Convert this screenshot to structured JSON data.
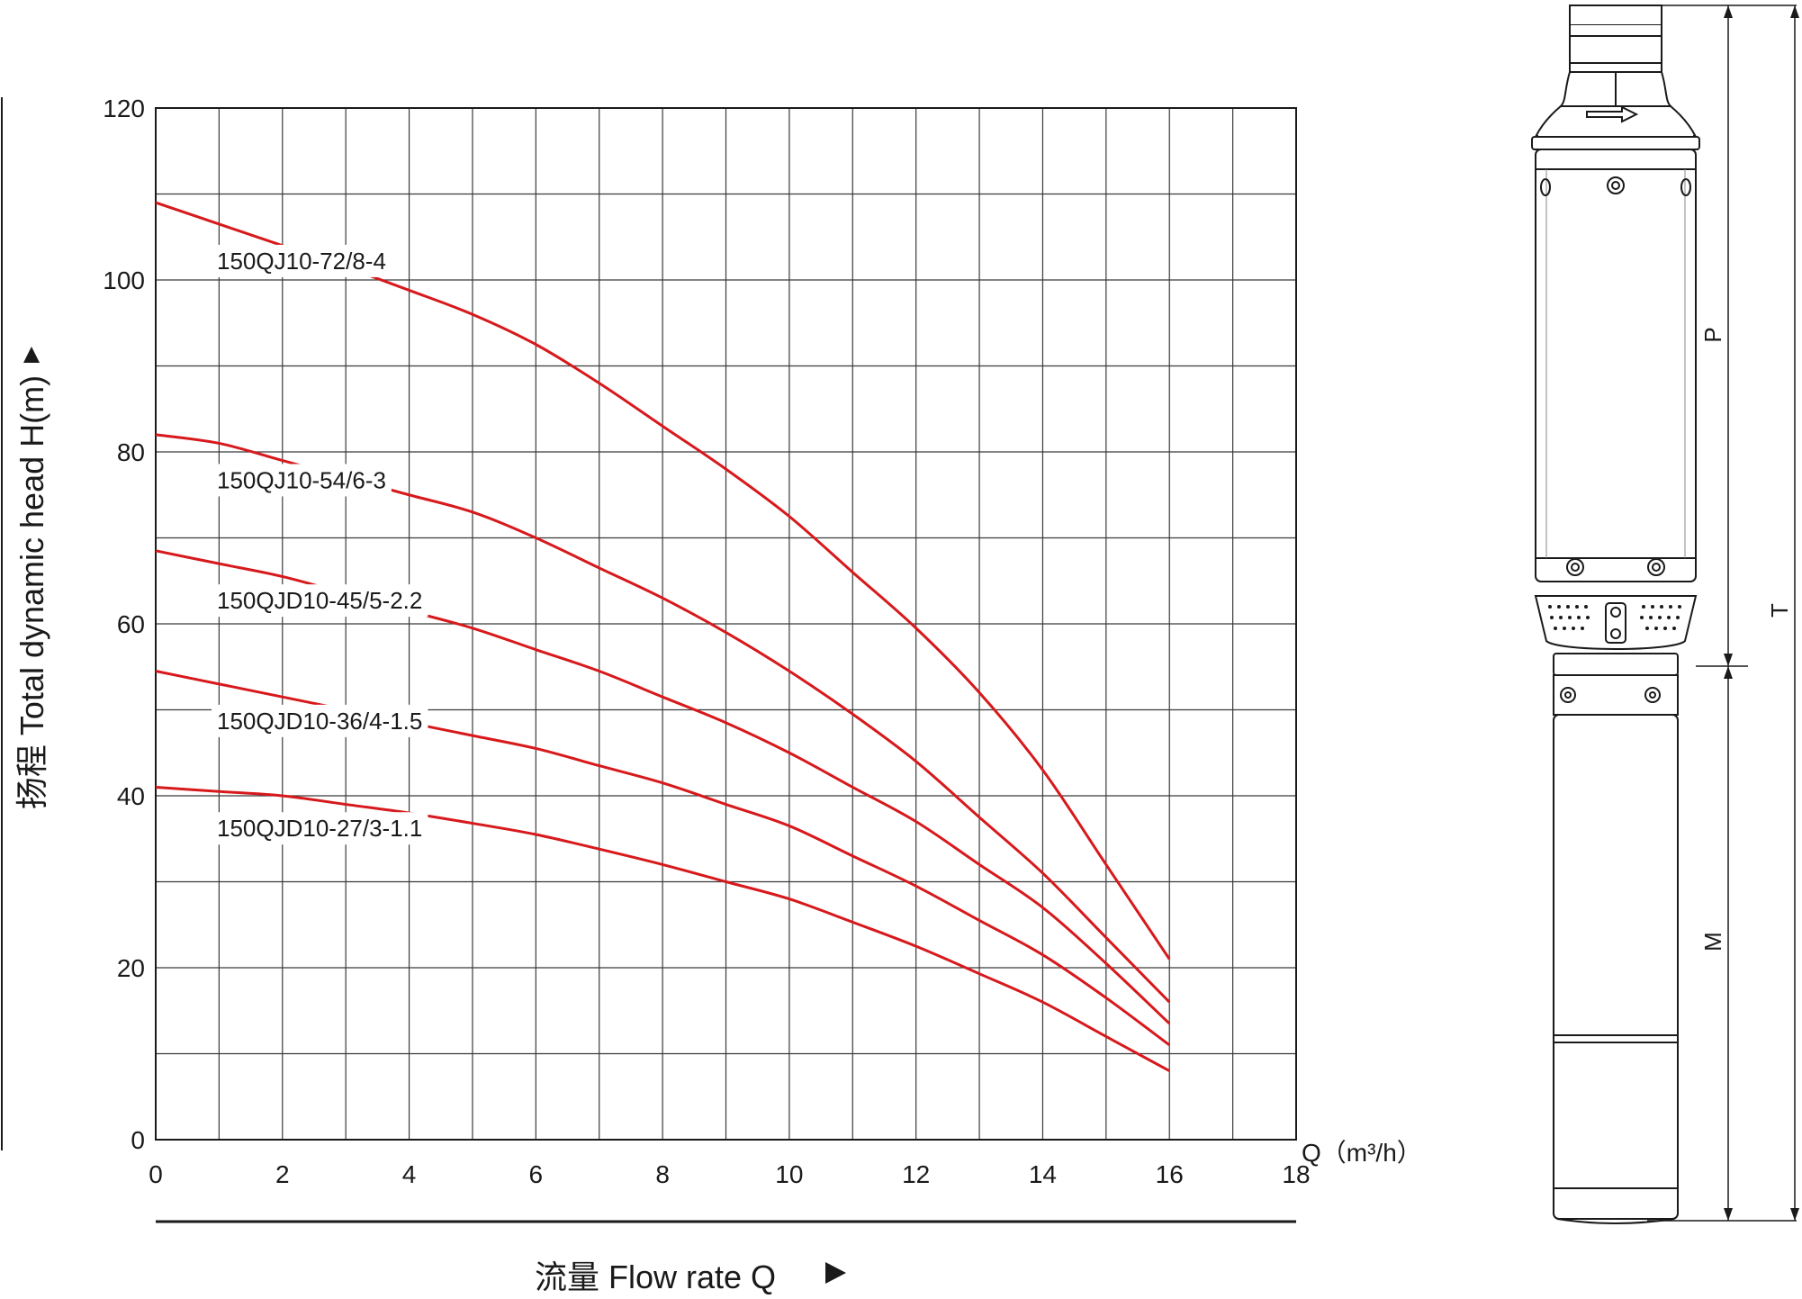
{
  "chart_data": {
    "type": "line",
    "ylabel": "扬程 Total dynamic head H(m)",
    "xlabel": "流量 Flow rate Q",
    "x_unit_label": "Q（m³/h）",
    "xlim": [
      0,
      18
    ],
    "ylim": [
      0,
      120
    ],
    "x_ticks": [
      0,
      2,
      4,
      6,
      8,
      10,
      12,
      14,
      16,
      18
    ],
    "y_ticks": [
      0,
      20,
      40,
      60,
      80,
      100,
      120
    ],
    "grid": true,
    "line_color": "#d7191c",
    "x": [
      0,
      1,
      2,
      3,
      4,
      5,
      6,
      7,
      8,
      9,
      10,
      11,
      12,
      13,
      14,
      15,
      16
    ],
    "series": [
      {
        "name": "150QJ10-72/8-4",
        "values": [
          109,
          106.5,
          104,
          101.5,
          98.8,
          96,
          92.5,
          88,
          83,
          78,
          72.5,
          66,
          59.5,
          52,
          43,
          32,
          21
        ]
      },
      {
        "name": "150QJ10-54/6-3",
        "values": [
          82,
          81,
          79,
          77,
          75,
          73,
          70,
          66.5,
          63,
          59,
          54.5,
          49.5,
          44,
          37.5,
          31,
          23.5,
          16
        ]
      },
      {
        "name": "150QJD10-45/5-2.2",
        "values": [
          68.5,
          67,
          65.5,
          63.5,
          61.5,
          59.5,
          57,
          54.5,
          51.5,
          48.5,
          45,
          41,
          37,
          32,
          27,
          20.5,
          13.5
        ]
      },
      {
        "name": "150QJD10-36/4-1.5",
        "values": [
          54.5,
          53,
          51.5,
          50,
          48.5,
          47,
          45.5,
          43.5,
          41.5,
          39,
          36.5,
          33,
          29.5,
          25.5,
          21.5,
          16.5,
          11
        ]
      },
      {
        "name": "150QJD10-27/3-1.1",
        "values": [
          41,
          40.5,
          40,
          39,
          38,
          36.8,
          35.5,
          33.8,
          32,
          30,
          28,
          25.3,
          22.5,
          19.3,
          16,
          12,
          8
        ]
      }
    ]
  },
  "pump_drawing": {
    "dimension_labels": [
      "P",
      "T",
      "M"
    ]
  }
}
